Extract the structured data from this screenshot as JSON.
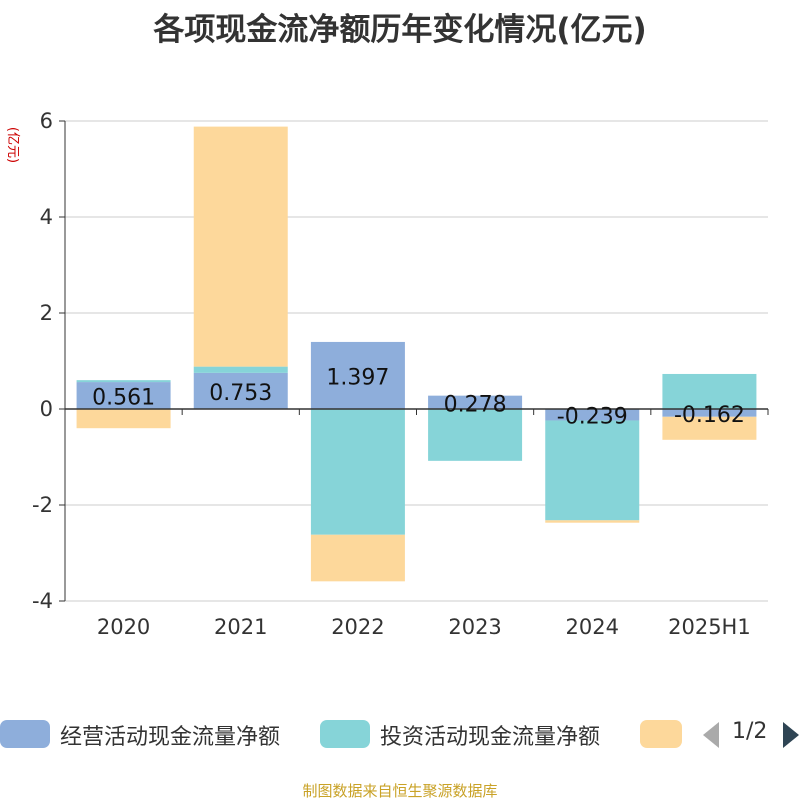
{
  "chart_data": {
    "type": "bar",
    "title": "各项现金流净额历年变化情况(亿元)",
    "ylabel": "(亿元)",
    "xlabel": "",
    "categories": [
      "2020",
      "2021",
      "2022",
      "2023",
      "2024",
      "2025H1"
    ],
    "ylim": [
      -4,
      6
    ],
    "yticks": [
      -4,
      -2,
      0,
      2,
      4,
      6
    ],
    "stacked": true,
    "grid": true,
    "series": [
      {
        "name": "经营活动现金流量净额",
        "color": "#8eaedb",
        "values": [
          0.561,
          0.753,
          1.397,
          0.278,
          -0.239,
          -0.162
        ],
        "labels": [
          "0.561",
          "0.753",
          "1.397",
          "0.278",
          "-0.239",
          "-0.162"
        ]
      },
      {
        "name": "投资活动现金流量净额",
        "color": "#86d4d8",
        "values": [
          0.04,
          0.13,
          -2.62,
          -1.08,
          -2.08,
          0.73
        ]
      },
      {
        "name": "",
        "color": "#fdd89b",
        "values": [
          -0.4,
          5.0,
          -0.97,
          0.0,
          -0.05,
          -0.48
        ]
      }
    ],
    "legend_position": "bottom"
  },
  "legend": {
    "page": "1/2"
  },
  "source": "制图数据来自恒生聚源数据库"
}
